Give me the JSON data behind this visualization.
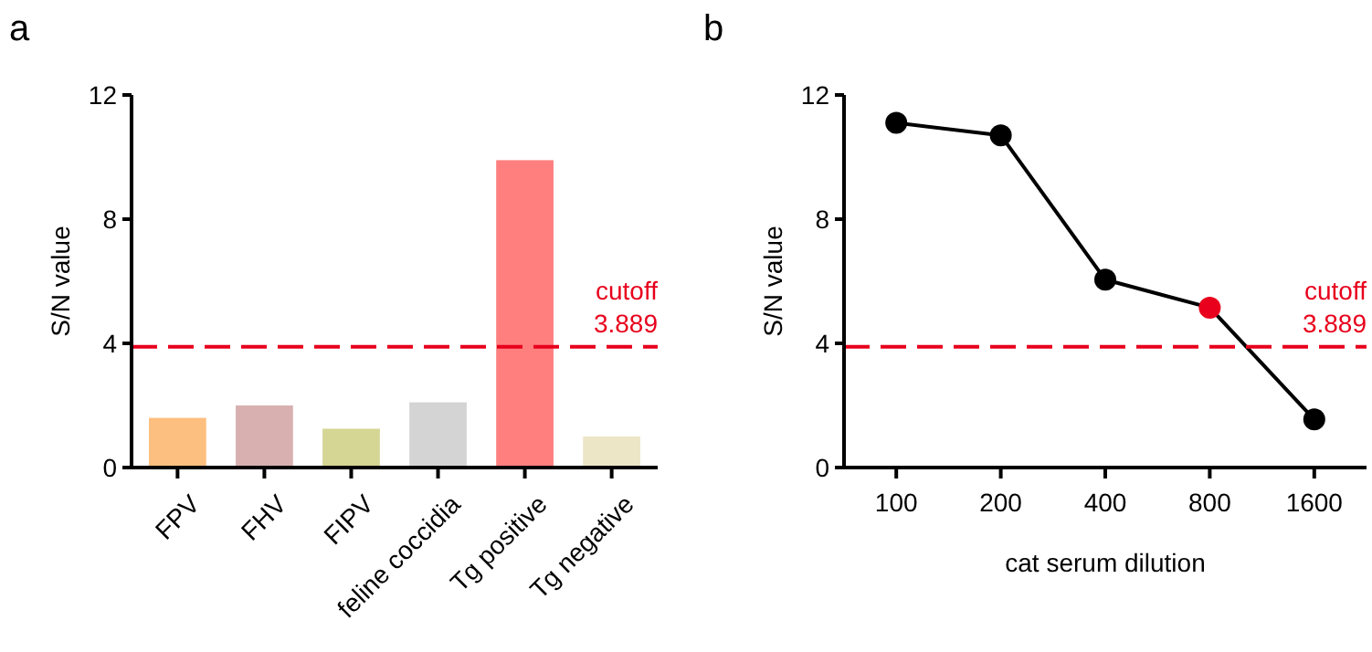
{
  "chart_data": [
    {
      "type": "bar",
      "title": "a",
      "ylabel": "S/N value",
      "categories": [
        "FPV",
        "FHV",
        "FIPV",
        "feline coccidia",
        "Tg positive",
        "Tg negative"
      ],
      "values": [
        1.6,
        2.0,
        1.25,
        2.1,
        9.9,
        1.0
      ],
      "colors": [
        "#fdbf80",
        "#d8b0b0",
        "#d5d594",
        "#d4d4d4",
        "#ff7f7f",
        "#ece5c6"
      ],
      "ylim": [
        0,
        12
      ],
      "yticks": [
        0,
        4,
        8,
        12
      ],
      "grid": false,
      "ref_lines": [
        {
          "axis": "y",
          "value": 3.889,
          "label": "cutoff 3.889",
          "color": "#e8001c",
          "line_style": "dashed"
        }
      ]
    },
    {
      "type": "line",
      "title": "b",
      "ylabel": "S/N value",
      "xlabel": "cat serum dilution",
      "categories": [
        "100",
        "200",
        "400",
        "800",
        "1600"
      ],
      "values": [
        11.1,
        10.7,
        6.05,
        5.15,
        1.55
      ],
      "color": "#000000",
      "colors": [
        "#000000",
        "#000000",
        "#000000",
        "#e8001c",
        "#000000"
      ],
      "marker": "circle",
      "line_style": "solid",
      "ylim": [
        0,
        12
      ],
      "yticks": [
        0,
        4,
        8,
        12
      ],
      "grid": false,
      "ref_lines": [
        {
          "axis": "y",
          "value": 3.889,
          "label": "cutoff 3.889",
          "color": "#e8001c",
          "line_style": "dashed"
        }
      ]
    }
  ]
}
